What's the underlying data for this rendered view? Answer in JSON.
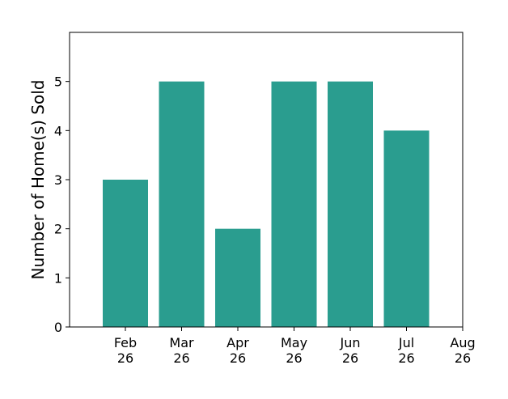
{
  "chart_data": {
    "type": "bar",
    "title": "",
    "xlabel": "",
    "ylabel": "Number of Home(s) Sold",
    "categories": [
      "Feb 26",
      "Mar 26",
      "Apr 26",
      "May 26",
      "Jun 26",
      "Jul 26"
    ],
    "values": [
      3,
      5,
      2,
      5,
      5,
      4
    ],
    "x_tick_labels": [
      {
        "month": "Feb",
        "year": "26"
      },
      {
        "month": "Mar",
        "year": "26"
      },
      {
        "month": "Apr",
        "year": "26"
      },
      {
        "month": "May",
        "year": "26"
      },
      {
        "month": "Jun",
        "year": "26"
      },
      {
        "month": "Jul",
        "year": "26"
      },
      {
        "month": "Aug",
        "year": "26"
      }
    ],
    "y_ticks": [
      "0",
      "1",
      "2",
      "3",
      "4",
      "5"
    ],
    "ylim": [
      0,
      6
    ],
    "grid": false,
    "legend": "none",
    "bar_color": "#2a9d8f"
  }
}
